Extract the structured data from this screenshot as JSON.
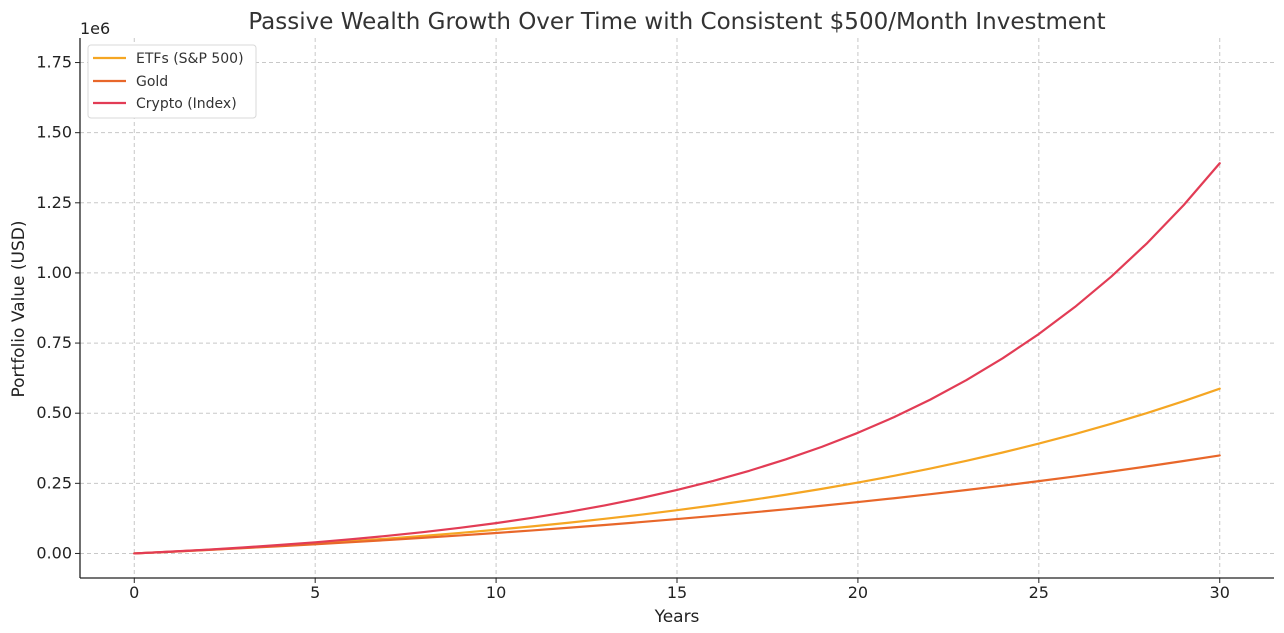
{
  "chart_data": {
    "type": "line",
    "title": "Passive Wealth Growth Over Time with Consistent $500/Month Investment",
    "xlabel": "Years",
    "ylabel": "Portfolio Value (USD)",
    "y_offset_label": "1e6",
    "xlim": [
      -1.5,
      31.5
    ],
    "ylim": [
      -0.0875,
      1.8375
    ],
    "xticks": [
      0,
      5,
      10,
      15,
      20,
      25,
      30
    ],
    "xtick_labels": [
      "0",
      "5",
      "10",
      "15",
      "20",
      "25",
      "30"
    ],
    "yticks": [
      0,
      0.25,
      0.5,
      0.75,
      1.0,
      1.25,
      1.5,
      1.75
    ],
    "ytick_labels": [
      "0.00",
      "0.25",
      "0.50",
      "0.75",
      "1.00",
      "1.25",
      "1.50",
      "1.75"
    ],
    "grid": true,
    "legend_position": "top-left",
    "x": [
      0,
      1,
      2,
      3,
      4,
      5,
      6,
      7,
      8,
      9,
      10,
      11,
      12,
      13,
      14,
      15,
      16,
      17,
      18,
      19,
      20,
      21,
      22,
      23,
      24,
      25,
      26,
      27,
      28,
      29,
      30
    ],
    "series": [
      {
        "name": "ETFs (S&P 500)",
        "color": "#f5a623",
        "values": [
          0,
          0.0062,
          0.0127,
          0.0197,
          0.0272,
          0.0352,
          0.0437,
          0.0529,
          0.0627,
          0.0732,
          0.0845,
          0.0966,
          0.1095,
          0.1234,
          0.1383,
          0.1542,
          0.1713,
          0.1896,
          0.2092,
          0.2302,
          0.2527,
          0.2768,
          0.3026,
          0.3303,
          0.3599,
          0.3916,
          0.4256,
          0.462,
          0.501,
          0.5428,
          0.5875
        ]
      },
      {
        "name": "Gold",
        "color": "#e8672a",
        "values": [
          0,
          0.0061,
          0.0124,
          0.0189,
          0.0257,
          0.0328,
          0.0402,
          0.0479,
          0.0559,
          0.0643,
          0.073,
          0.0821,
          0.0916,
          0.1015,
          0.1118,
          0.1225,
          0.1337,
          0.1453,
          0.1574,
          0.17,
          0.1832,
          0.1969,
          0.2112,
          0.2261,
          0.2416,
          0.2578,
          0.2746,
          0.2922,
          0.3105,
          0.3295,
          0.3494
        ]
      },
      {
        "name": "Crypto (Index)",
        "color": "#e23c55",
        "values": [
          0,
          0.0064,
          0.0134,
          0.0213,
          0.0301,
          0.0398,
          0.0507,
          0.0628,
          0.0763,
          0.0914,
          0.1082,
          0.127,
          0.1479,
          0.1712,
          0.1973,
          0.2263,
          0.2587,
          0.2948,
          0.3351,
          0.38,
          0.4301,
          0.486,
          0.5484,
          0.618,
          0.6956,
          0.7822,
          0.8789,
          0.9867,
          1.107,
          1.2412,
          1.391
        ]
      }
    ]
  }
}
